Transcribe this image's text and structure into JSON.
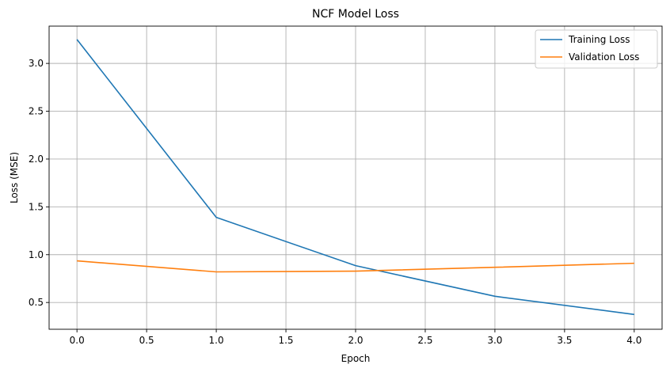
{
  "chart_data": {
    "type": "line",
    "title": "NCF Model Loss",
    "xlabel": "Epoch",
    "ylabel": "Loss (MSE)",
    "x": [
      0,
      1,
      2,
      3,
      4
    ],
    "xlim": [
      -0.2,
      4.2
    ],
    "ylim": [
      0.22,
      3.39
    ],
    "xticks": [
      0.0,
      0.5,
      1.0,
      1.5,
      2.0,
      2.5,
      3.0,
      3.5,
      4.0
    ],
    "xtick_labels": [
      "0.0",
      "0.5",
      "1.0",
      "1.5",
      "2.0",
      "2.5",
      "3.0",
      "3.5",
      "4.0"
    ],
    "yticks": [
      0.5,
      1.0,
      1.5,
      2.0,
      2.5,
      3.0
    ],
    "ytick_labels": [
      "0.5",
      "1.0",
      "1.5",
      "2.0",
      "2.5",
      "3.0"
    ],
    "grid": true,
    "legend_position": "top-right",
    "series": [
      {
        "name": "Training Loss",
        "color": "#1f77b4",
        "values": [
          3.25,
          1.39,
          0.885,
          0.565,
          0.375
        ]
      },
      {
        "name": "Validation Loss",
        "color": "#ff7f0e",
        "values": [
          0.935,
          0.82,
          0.828,
          0.868,
          0.91
        ]
      }
    ]
  }
}
